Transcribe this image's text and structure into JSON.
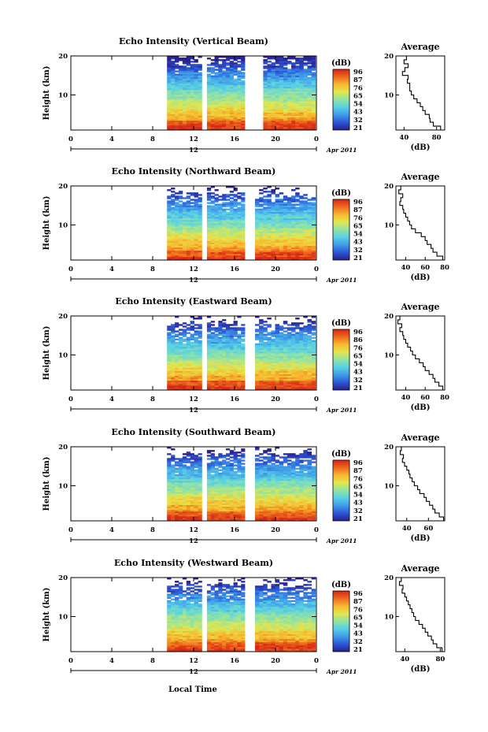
{
  "figure": {
    "local_time_label": "Local Time",
    "colors": {
      "colorbar_stops": [
        "#2a1f8f",
        "#2c57d6",
        "#3f9be8",
        "#59d0e6",
        "#8fe3a6",
        "#e3e64e",
        "#f7b92f",
        "#ef6a1e",
        "#d62616"
      ],
      "background": "#ffffff",
      "gap_color": "#ffffff"
    }
  },
  "chart_data": [
    {
      "type": "heatmap",
      "title": "Echo Intensity (Vertical Beam)",
      "ylabel": "Height (km)",
      "x_ticks": [
        "0",
        "4",
        "8",
        "12",
        "16",
        "20",
        "0"
      ],
      "y_ticks": [
        "20",
        "10"
      ],
      "xlim": [
        0,
        24
      ],
      "ylim": [
        1,
        20
      ],
      "date_marker": "12",
      "date_label": "Apr 2011",
      "colorbar": {
        "label": "(dB)",
        "ticks": [
          "96",
          "87",
          "76",
          "65",
          "54",
          "43",
          "32",
          "21"
        ]
      },
      "data_segments_hours": [
        [
          9.4,
          12.8
        ],
        [
          13.3,
          17.0
        ],
        [
          18.8,
          23.9
        ]
      ],
      "average_profile": {
        "title": "Average",
        "xlabel": "(dB)",
        "x_ticks": [
          "40",
          "80"
        ],
        "y_ticks": [
          "20",
          "10"
        ],
        "xlim": [
          30,
          90
        ],
        "ylim": [
          1,
          20
        ],
        "height_km": [
          20,
          19,
          18,
          17,
          16,
          15,
          14,
          13,
          12,
          11,
          10,
          9,
          8,
          7,
          6,
          5,
          4,
          3,
          2,
          1
        ],
        "value_db": [
          43,
          40,
          45,
          41,
          38,
          45,
          44,
          47,
          47,
          49,
          52,
          56,
          60,
          63,
          66,
          71,
          72,
          76,
          85,
          82
        ]
      }
    },
    {
      "type": "heatmap",
      "title": "Echo Intensity (Northward Beam)",
      "ylabel": "Height (km)",
      "x_ticks": [
        "0",
        "4",
        "8",
        "12",
        "16",
        "20",
        "0"
      ],
      "y_ticks": [
        "20",
        "10"
      ],
      "xlim": [
        0,
        24
      ],
      "ylim": [
        1,
        20
      ],
      "date_marker": "12",
      "date_label": "Apr 2011",
      "colorbar": {
        "label": "(dB)",
        "ticks": [
          "96",
          "87",
          "76",
          "65",
          "54",
          "43",
          "32",
          "21"
        ]
      },
      "data_segments_hours": [
        [
          9.4,
          12.8
        ],
        [
          13.3,
          17.0
        ],
        [
          18.0,
          23.9
        ]
      ],
      "average_profile": {
        "title": "Average",
        "xlabel": "(dB)",
        "x_ticks": [
          "40",
          "60",
          "80"
        ],
        "y_ticks": [
          "20",
          "10"
        ],
        "xlim": [
          30,
          80
        ],
        "ylim": [
          1,
          20
        ],
        "height_km": [
          20,
          19,
          18,
          17,
          16,
          15,
          14,
          13,
          12,
          11,
          10,
          9,
          8,
          7,
          6,
          5,
          4,
          3,
          2,
          1
        ],
        "value_db": [
          35,
          33,
          37,
          35,
          34,
          37,
          38,
          40,
          42,
          44,
          46,
          50,
          56,
          60,
          62,
          66,
          68,
          72,
          78,
          76
        ]
      }
    },
    {
      "type": "heatmap",
      "title": "Echo Intensity (Eastward Beam)",
      "ylabel": "Height (km)",
      "x_ticks": [
        "0",
        "4",
        "8",
        "12",
        "16",
        "20",
        "0"
      ],
      "y_ticks": [
        "20",
        "10"
      ],
      "xlim": [
        0,
        24
      ],
      "ylim": [
        1,
        20
      ],
      "date_marker": "12",
      "date_label": "Apr 2011",
      "colorbar": {
        "label": "(dB)",
        "ticks": [
          "96",
          "86",
          "76",
          "65",
          "54",
          "43",
          "32",
          "21"
        ]
      },
      "data_segments_hours": [
        [
          9.4,
          12.8
        ],
        [
          13.3,
          17.0
        ],
        [
          18.0,
          23.9
        ]
      ],
      "average_profile": {
        "title": "Average",
        "xlabel": "(dB)",
        "x_ticks": [
          "40",
          "60",
          "80"
        ],
        "y_ticks": [
          "20",
          "10"
        ],
        "xlim": [
          30,
          80
        ],
        "ylim": [
          1,
          20
        ],
        "height_km": [
          20,
          19,
          18,
          17,
          16,
          15,
          14,
          13,
          12,
          11,
          10,
          9,
          8,
          7,
          6,
          5,
          4,
          3,
          2,
          1
        ],
        "value_db": [
          34,
          32,
          36,
          34,
          37,
          38,
          40,
          42,
          45,
          47,
          50,
          54,
          58,
          60,
          64,
          68,
          70,
          74,
          78,
          76
        ]
      }
    },
    {
      "type": "heatmap",
      "title": "Echo Intensity (Southward Beam)",
      "ylabel": "Height (km)",
      "x_ticks": [
        "0",
        "4",
        "8",
        "12",
        "16",
        "20",
        "0"
      ],
      "y_ticks": [
        "20",
        "10"
      ],
      "xlim": [
        0,
        24
      ],
      "ylim": [
        1,
        20
      ],
      "date_marker": "12",
      "date_label": "Apr 2011",
      "colorbar": {
        "label": "(dB)",
        "ticks": [
          "96",
          "87",
          "76",
          "65",
          "54",
          "43",
          "32",
          "21"
        ]
      },
      "data_segments_hours": [
        [
          9.4,
          12.8
        ],
        [
          13.3,
          17.0
        ],
        [
          18.0,
          23.9
        ]
      ],
      "average_profile": {
        "title": "Average",
        "xlabel": "(dB)",
        "x_ticks": [
          "40",
          "60"
        ],
        "y_ticks": [
          "20",
          "10"
        ],
        "xlim": [
          30,
          75
        ],
        "ylim": [
          1,
          20
        ],
        "height_km": [
          20,
          19,
          18,
          17,
          16,
          15,
          14,
          13,
          12,
          11,
          10,
          9,
          8,
          7,
          6,
          5,
          4,
          3,
          2,
          1
        ],
        "value_db": [
          35,
          34,
          37,
          36,
          38,
          40,
          42,
          43,
          45,
          47,
          50,
          52,
          56,
          58,
          61,
          64,
          66,
          70,
          74,
          72
        ]
      }
    },
    {
      "type": "heatmap",
      "title": "Echo Intensity (Westward Beam)",
      "ylabel": "Height (km)",
      "x_ticks": [
        "0",
        "4",
        "8",
        "12",
        "16",
        "20",
        "0"
      ],
      "y_ticks": [
        "20",
        "10"
      ],
      "xlim": [
        0,
        24
      ],
      "ylim": [
        1,
        20
      ],
      "date_marker": "12",
      "date_label": "Apr 2011",
      "colorbar": {
        "label": "(dB)",
        "ticks": [
          "96",
          "87",
          "76",
          "65",
          "54",
          "43",
          "32",
          "21"
        ]
      },
      "data_segments_hours": [
        [
          9.4,
          12.8
        ],
        [
          13.3,
          17.0
        ],
        [
          18.0,
          23.9
        ]
      ],
      "average_profile": {
        "title": "Average",
        "xlabel": "(dB)",
        "x_ticks": [
          "40",
          "80"
        ],
        "y_ticks": [
          "20",
          "10"
        ],
        "xlim": [
          30,
          85
        ],
        "ylim": [
          1,
          20
        ],
        "height_km": [
          20,
          19,
          18,
          17,
          16,
          15,
          14,
          13,
          12,
          11,
          10,
          9,
          8,
          7,
          6,
          5,
          4,
          3,
          2,
          1
        ],
        "value_db": [
          36,
          34,
          38,
          37,
          40,
          42,
          44,
          46,
          48,
          50,
          52,
          56,
          60,
          63,
          66,
          70,
          72,
          76,
          82,
          80
        ]
      }
    }
  ]
}
